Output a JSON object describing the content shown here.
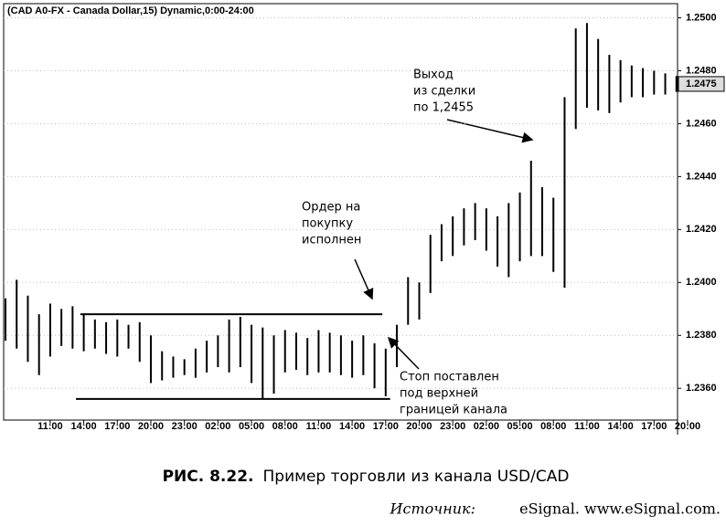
{
  "chart_data": {
    "type": "ohlc",
    "title": "(CAD A0-FX - Canada Dollar,15) Dynamic,0:00-24:00",
    "x": [
      0,
      1,
      2,
      3,
      4,
      5,
      6,
      7,
      8,
      9,
      10,
      11,
      12,
      13,
      14,
      15,
      16,
      17,
      18,
      19,
      20,
      21,
      22,
      23,
      24,
      25,
      26,
      27,
      28,
      29,
      30,
      31,
      32,
      33,
      34,
      35,
      36,
      37,
      38,
      39,
      40,
      41,
      42,
      43,
      44,
      45,
      46,
      47,
      48,
      49,
      50,
      51,
      52,
      53,
      54,
      55,
      56,
      57,
      58,
      59,
      60
    ],
    "high": [
      1.2394,
      1.2401,
      1.2395,
      1.2388,
      1.2392,
      1.239,
      1.2391,
      1.2388,
      1.2386,
      1.2385,
      1.2386,
      1.2384,
      1.2385,
      1.238,
      1.2374,
      1.2372,
      1.2371,
      1.2375,
      1.2378,
      1.238,
      1.2386,
      1.2387,
      1.2384,
      1.2383,
      1.238,
      1.2382,
      1.2381,
      1.2379,
      1.2382,
      1.2381,
      1.238,
      1.2378,
      1.238,
      1.2377,
      1.2375,
      1.2384,
      1.2402,
      1.24,
      1.2418,
      1.2422,
      1.2425,
      1.2428,
      1.243,
      1.2428,
      1.2425,
      1.243,
      1.2434,
      1.2446,
      1.2436,
      1.2432,
      1.247,
      1.2496,
      1.2498,
      1.2492,
      1.2486,
      1.2484,
      1.2482,
      1.2481,
      1.248,
      1.2479,
      1.2478
    ],
    "low": [
      1.2378,
      1.2375,
      1.237,
      1.2365,
      1.2372,
      1.2376,
      1.2375,
      1.2374,
      1.2375,
      1.2373,
      1.2372,
      1.2375,
      1.237,
      1.2362,
      1.2363,
      1.2364,
      1.2365,
      1.2364,
      1.2366,
      1.2368,
      1.2366,
      1.2368,
      1.2362,
      1.2356,
      1.2358,
      1.2366,
      1.2367,
      1.2365,
      1.2366,
      1.2366,
      1.2365,
      1.2364,
      1.2365,
      1.236,
      1.2357,
      1.2368,
      1.2384,
      1.2386,
      1.2396,
      1.2408,
      1.241,
      1.2414,
      1.2416,
      1.2412,
      1.2406,
      1.2402,
      1.2408,
      1.241,
      1.241,
      1.2404,
      1.2398,
      1.2458,
      1.2466,
      1.2465,
      1.2464,
      1.2468,
      1.247,
      1.247,
      1.2471,
      1.2471,
      1.2472
    ],
    "color": "#000000",
    "xlim": [
      0,
      61
    ],
    "xticks": [
      {
        "value": 4,
        "label": "11:00"
      },
      {
        "value": 7,
        "label": "14:00"
      },
      {
        "value": 10,
        "label": "17:00"
      },
      {
        "value": 13,
        "label": "20:00"
      },
      {
        "value": 16,
        "label": "23:00"
      },
      {
        "value": 19,
        "label": "02:00"
      },
      {
        "value": 22,
        "label": "05:00"
      },
      {
        "value": 25,
        "label": "08:00"
      },
      {
        "value": 28,
        "label": "11:00"
      },
      {
        "value": 31,
        "label": "14:00"
      },
      {
        "value": 34,
        "label": "17:00"
      },
      {
        "value": 37,
        "label": "20:00"
      },
      {
        "value": 40,
        "label": "23:00"
      },
      {
        "value": 43,
        "label": "02:00"
      },
      {
        "value": 46,
        "label": "05:00"
      },
      {
        "value": 49,
        "label": "08:00"
      },
      {
        "value": 52,
        "label": "11:00"
      },
      {
        "value": 55,
        "label": "14:00"
      },
      {
        "value": 58,
        "label": "17:00"
      },
      {
        "value": 61,
        "label": "20:00"
      }
    ],
    "ylim": [
      1.2348,
      1.2505
    ],
    "yticks": [
      {
        "value": 1.236,
        "label": "1.2360"
      },
      {
        "value": 1.238,
        "label": "1.2380"
      },
      {
        "value": 1.24,
        "label": "1.2400"
      },
      {
        "value": 1.242,
        "label": "1.2420"
      },
      {
        "value": 1.244,
        "label": "1.2440"
      },
      {
        "value": 1.246,
        "label": "1.2460"
      },
      {
        "value": 1.248,
        "label": "1.2480"
      },
      {
        "value": 1.25,
        "label": "1.2500"
      }
    ],
    "last_value": {
      "value": 1.2475,
      "label": "1.2475"
    },
    "channel_lines": [
      {
        "y": 1.2388,
        "x": [
          6.7,
          33.7
        ]
      },
      {
        "y": 1.2356,
        "x": [
          6.3,
          34.4
        ]
      }
    ],
    "annotations": [
      [
        "Ордер на",
        "покупку",
        "исполнен"
      ],
      [
        "Выход",
        "из сделки",
        "по 1,2455"
      ],
      [
        "Стоп поставлен",
        "под верхней",
        "границей канала"
      ]
    ],
    "caption": {
      "number": "РИС. 8.22.",
      "text": "Пример торговли из канала USD/CAD"
    },
    "source": {
      "label": "Источник:",
      "text": "eSignal. www.eSignal.com."
    }
  }
}
